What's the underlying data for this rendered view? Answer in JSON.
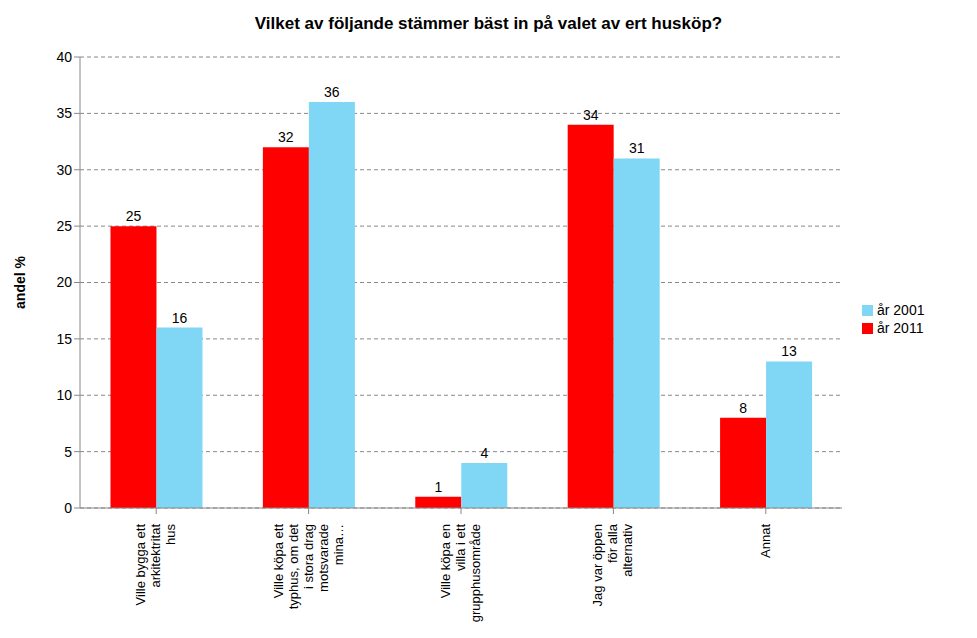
{
  "chart_data": {
    "type": "bar",
    "title": "Vilket av följande stämmer bäst in på valet av ert husköp?",
    "y_label": "andel %",
    "categories": [
      "Ville bygga ett arkitektritat hus",
      "Ville köpa ett typhus, om det i stora drag motsvarade mina…",
      "Ville köpa en villa i ett grupphusområde",
      "Jag var öppen för alla alternativ",
      "Annat"
    ],
    "series": [
      {
        "name": "år 2011",
        "color": "#ff0000",
        "values": [
          25,
          32,
          1,
          34,
          8
        ]
      },
      {
        "name": "år 2001",
        "color": "#7fd6f5",
        "values": [
          16,
          36,
          4,
          31,
          13
        ]
      }
    ],
    "ylim": [
      0,
      40
    ],
    "yticks": [
      0,
      5,
      10,
      15,
      20,
      25,
      30,
      35,
      40
    ],
    "grid": true,
    "legend": "right",
    "data_labels": true
  }
}
